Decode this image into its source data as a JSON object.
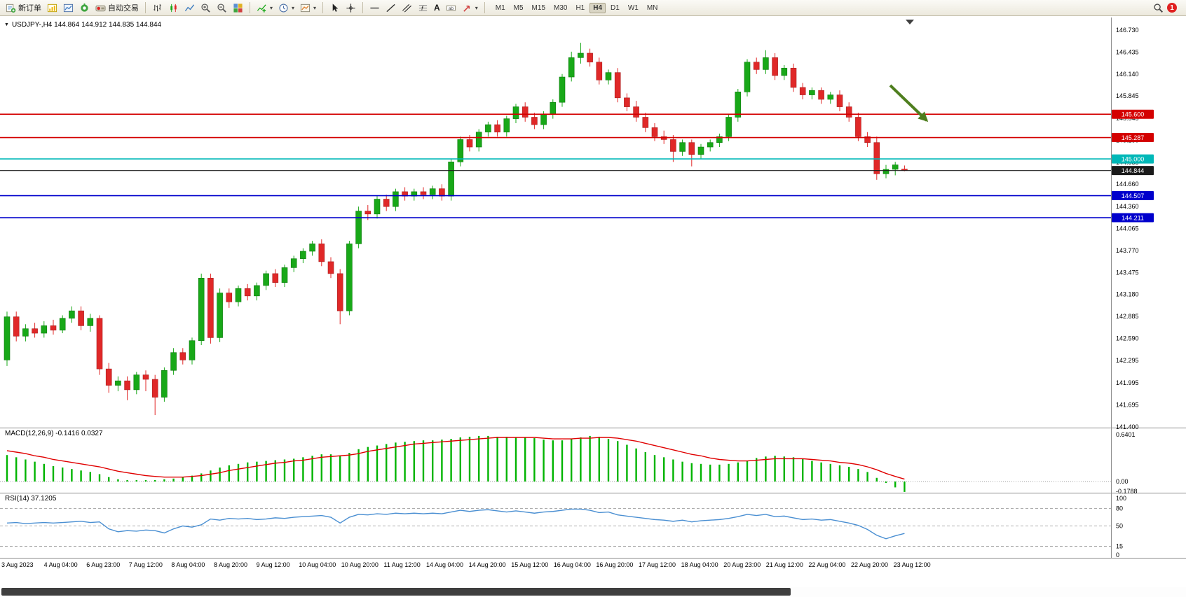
{
  "toolbar": {
    "new_order_label": "新订单",
    "auto_trading_label": "自动交易",
    "text_tool_label": "A",
    "timeframes": [
      "M1",
      "M5",
      "M15",
      "M30",
      "H1",
      "H4",
      "D1",
      "W1",
      "MN"
    ],
    "active_timeframe": "H4",
    "notification_count": "1"
  },
  "chart": {
    "title_text": "USDJPY-,H4 144.864 144.912 144.835 144.844",
    "symbol": "USDJPY-",
    "period": "H4",
    "ohlc": {
      "open": "144.864",
      "high": "144.912",
      "low": "144.835",
      "close": "144.844"
    }
  },
  "chart_data": {
    "type": "candlestick",
    "symbol": "USDJPY",
    "timeframe": "H4",
    "ylim": [
      141.4,
      146.85
    ],
    "up_color": "#18a818",
    "down_color": "#e02828",
    "price_axis_labels": [
      "146.730",
      "146.435",
      "146.140",
      "145.845",
      "145.545",
      "145.250",
      "144.955",
      "144.660",
      "144.360",
      "144.065",
      "143.770",
      "143.475",
      "143.180",
      "142.885",
      "142.590",
      "142.295",
      "141.995",
      "141.695",
      "141.400"
    ],
    "x_labels": [
      "3 Aug 2023",
      "4 Aug 04:00",
      "6 Aug 23:00",
      "7 Aug 12:00",
      "8 Aug 04:00",
      "8 Aug 20:00",
      "9 Aug 12:00",
      "10 Aug 04:00",
      "10 Aug 20:00",
      "11 Aug 12:00",
      "14 Aug 04:00",
      "14 Aug 20:00",
      "15 Aug 12:00",
      "16 Aug 04:00",
      "16 Aug 20:00",
      "17 Aug 12:00",
      "18 Aug 04:00",
      "20 Aug 23:00",
      "21 Aug 12:00",
      "22 Aug 04:00",
      "22 Aug 20:00",
      "23 Aug 12:00"
    ],
    "levels": [
      {
        "value": 145.6,
        "label": "145.600",
        "color": "#d40000",
        "kind": "resistance"
      },
      {
        "value": 145.287,
        "label": "145.287",
        "color": "#d40000",
        "kind": "resistance"
      },
      {
        "value": 145.0,
        "label": "145.000",
        "color": "#00b8b8",
        "kind": "pivot"
      },
      {
        "value": 144.844,
        "label": "144.844",
        "color": "#1a1a1a",
        "kind": "current-price"
      },
      {
        "value": 144.507,
        "label": "144.507",
        "color": "#0000cc",
        "kind": "support"
      },
      {
        "value": 144.211,
        "label": "144.211",
        "color": "#0000cc",
        "kind": "support"
      }
    ],
    "annotations": [
      {
        "type": "arrow",
        "direction": "down-right",
        "color": "#4e7e1e"
      }
    ],
    "candles": [
      [
        142.3,
        142.95,
        142.22,
        142.88
      ],
      [
        142.88,
        142.95,
        142.55,
        142.62
      ],
      [
        142.62,
        142.78,
        142.55,
        142.72
      ],
      [
        142.72,
        142.8,
        142.6,
        142.66
      ],
      [
        142.66,
        142.82,
        142.6,
        142.76
      ],
      [
        142.76,
        142.84,
        142.64,
        142.7
      ],
      [
        142.7,
        142.9,
        142.66,
        142.86
      ],
      [
        142.86,
        143.02,
        142.8,
        142.96
      ],
      [
        142.96,
        143.02,
        142.7,
        142.76
      ],
      [
        142.76,
        142.92,
        142.68,
        142.86
      ],
      [
        142.86,
        142.9,
        142.1,
        142.18
      ],
      [
        142.18,
        142.26,
        141.86,
        141.96
      ],
      [
        141.96,
        142.08,
        141.88,
        142.02
      ],
      [
        142.02,
        142.08,
        141.76,
        141.9
      ],
      [
        141.9,
        142.14,
        141.84,
        142.1
      ],
      [
        142.1,
        142.16,
        141.88,
        142.04
      ],
      [
        142.04,
        142.1,
        141.56,
        141.8
      ],
      [
        141.8,
        142.2,
        141.74,
        142.16
      ],
      [
        142.16,
        142.46,
        142.1,
        142.4
      ],
      [
        142.4,
        142.46,
        142.24,
        142.3
      ],
      [
        142.3,
        142.6,
        142.24,
        142.56
      ],
      [
        142.56,
        143.46,
        142.5,
        143.4
      ],
      [
        143.4,
        143.46,
        142.52,
        142.6
      ],
      [
        142.6,
        143.26,
        142.54,
        143.2
      ],
      [
        143.2,
        143.26,
        143.0,
        143.08
      ],
      [
        143.08,
        143.3,
        143.02,
        143.26
      ],
      [
        143.26,
        143.32,
        143.1,
        143.16
      ],
      [
        143.16,
        143.34,
        143.1,
        143.3
      ],
      [
        143.3,
        143.5,
        143.24,
        143.46
      ],
      [
        143.46,
        143.52,
        143.28,
        143.34
      ],
      [
        143.34,
        143.58,
        143.28,
        143.54
      ],
      [
        143.54,
        143.7,
        143.48,
        143.66
      ],
      [
        143.66,
        143.8,
        143.6,
        143.76
      ],
      [
        143.76,
        143.9,
        143.7,
        143.86
      ],
      [
        143.86,
        143.92,
        143.56,
        143.62
      ],
      [
        143.62,
        143.68,
        143.4,
        143.46
      ],
      [
        143.46,
        143.52,
        142.78,
        142.96
      ],
      [
        142.96,
        143.9,
        142.9,
        143.86
      ],
      [
        143.86,
        144.36,
        143.8,
        144.3
      ],
      [
        144.3,
        144.38,
        144.18,
        144.26
      ],
      [
        144.26,
        144.5,
        144.2,
        144.46
      ],
      [
        144.46,
        144.52,
        144.3,
        144.36
      ],
      [
        144.36,
        144.6,
        144.3,
        144.56
      ],
      [
        144.56,
        144.62,
        144.44,
        144.5
      ],
      [
        144.5,
        144.6,
        144.44,
        144.56
      ],
      [
        144.56,
        144.62,
        144.46,
        144.52
      ],
      [
        144.52,
        144.64,
        144.46,
        144.6
      ],
      [
        144.6,
        144.66,
        144.44,
        144.5
      ],
      [
        144.5,
        145.0,
        144.44,
        144.96
      ],
      [
        144.96,
        145.3,
        144.9,
        145.26
      ],
      [
        145.26,
        145.32,
        145.1,
        145.16
      ],
      [
        145.16,
        145.4,
        145.1,
        145.36
      ],
      [
        145.36,
        145.5,
        145.3,
        145.46
      ],
      [
        145.46,
        145.52,
        145.3,
        145.36
      ],
      [
        145.36,
        145.58,
        145.3,
        145.54
      ],
      [
        145.54,
        145.74,
        145.48,
        145.7
      ],
      [
        145.7,
        145.76,
        145.5,
        145.56
      ],
      [
        145.56,
        145.62,
        145.4,
        145.46
      ],
      [
        145.46,
        145.64,
        145.4,
        145.6
      ],
      [
        145.6,
        145.8,
        145.54,
        145.76
      ],
      [
        145.76,
        146.14,
        145.7,
        146.1
      ],
      [
        146.1,
        146.44,
        146.04,
        146.36
      ],
      [
        146.36,
        146.56,
        146.28,
        146.42
      ],
      [
        146.42,
        146.48,
        146.24,
        146.3
      ],
      [
        146.3,
        146.36,
        146.0,
        146.06
      ],
      [
        146.06,
        146.2,
        146.0,
        146.16
      ],
      [
        146.16,
        146.22,
        145.76,
        145.82
      ],
      [
        145.82,
        145.88,
        145.64,
        145.7
      ],
      [
        145.7,
        145.78,
        145.5,
        145.56
      ],
      [
        145.56,
        145.62,
        145.36,
        145.42
      ],
      [
        145.42,
        145.48,
        145.24,
        145.3
      ],
      [
        145.3,
        145.38,
        145.2,
        145.26
      ],
      [
        145.26,
        145.32,
        144.96,
        145.1
      ],
      [
        145.1,
        145.26,
        145.04,
        145.22
      ],
      [
        145.22,
        145.26,
        144.9,
        145.06
      ],
      [
        145.06,
        145.2,
        145.0,
        145.16
      ],
      [
        145.16,
        145.26,
        145.1,
        145.22
      ],
      [
        145.22,
        145.34,
        145.16,
        145.3
      ],
      [
        145.3,
        145.6,
        145.24,
        145.56
      ],
      [
        145.56,
        145.94,
        145.5,
        145.9
      ],
      [
        145.9,
        146.34,
        145.84,
        146.3
      ],
      [
        146.3,
        146.36,
        146.14,
        146.2
      ],
      [
        146.2,
        146.46,
        146.14,
        146.36
      ],
      [
        146.36,
        146.42,
        146.06,
        146.12
      ],
      [
        146.12,
        146.26,
        146.06,
        146.22
      ],
      [
        146.22,
        146.28,
        145.9,
        145.96
      ],
      [
        145.96,
        146.02,
        145.8,
        145.86
      ],
      [
        145.86,
        145.96,
        145.8,
        145.92
      ],
      [
        145.92,
        145.96,
        145.74,
        145.8
      ],
      [
        145.8,
        145.9,
        145.74,
        145.86
      ],
      [
        145.86,
        145.92,
        145.64,
        145.7
      ],
      [
        145.7,
        145.76,
        145.5,
        145.56
      ],
      [
        145.56,
        145.62,
        145.24,
        145.3
      ],
      [
        145.3,
        145.36,
        145.16,
        145.22
      ],
      [
        145.22,
        145.3,
        144.72,
        144.8
      ],
      [
        144.8,
        144.92,
        144.74,
        144.86
      ],
      [
        144.86,
        144.96,
        144.78,
        144.92
      ],
      [
        144.864,
        144.912,
        144.835,
        144.844
      ]
    ],
    "indicators": [
      {
        "type": "macd",
        "title": "MACD(12,26,9) -0.1416 0.0327",
        "histogram_color": "#00b400",
        "signal_color": "#e00000",
        "scale_labels": [
          "0.6401",
          "0.00",
          "-0.1788"
        ],
        "histogram": [
          0.36,
          0.33,
          0.3,
          0.27,
          0.24,
          0.21,
          0.19,
          0.17,
          0.15,
          0.13,
          0.1,
          0.06,
          0.03,
          0.02,
          0.02,
          0.02,
          0.02,
          0.03,
          0.04,
          0.06,
          0.08,
          0.11,
          0.15,
          0.19,
          0.22,
          0.24,
          0.26,
          0.27,
          0.28,
          0.29,
          0.3,
          0.31,
          0.33,
          0.35,
          0.37,
          0.37,
          0.35,
          0.39,
          0.44,
          0.47,
          0.49,
          0.51,
          0.53,
          0.54,
          0.55,
          0.56,
          0.56,
          0.57,
          0.58,
          0.6,
          0.61,
          0.62,
          0.62,
          0.61,
          0.61,
          0.6,
          0.6,
          0.59,
          0.57,
          0.56,
          0.56,
          0.58,
          0.6,
          0.62,
          0.61,
          0.58,
          0.55,
          0.5,
          0.45,
          0.4,
          0.36,
          0.33,
          0.3,
          0.27,
          0.25,
          0.24,
          0.23,
          0.23,
          0.24,
          0.26,
          0.28,
          0.32,
          0.34,
          0.35,
          0.34,
          0.33,
          0.31,
          0.28,
          0.26,
          0.24,
          0.22,
          0.2,
          0.17,
          0.13,
          0.05,
          -0.02,
          -0.08,
          -0.1416
        ],
        "signal": [
          0.42,
          0.4,
          0.38,
          0.35,
          0.33,
          0.3,
          0.28,
          0.26,
          0.24,
          0.22,
          0.2,
          0.17,
          0.14,
          0.12,
          0.1,
          0.08,
          0.07,
          0.06,
          0.06,
          0.06,
          0.07,
          0.08,
          0.1,
          0.12,
          0.15,
          0.17,
          0.19,
          0.21,
          0.23,
          0.25,
          0.26,
          0.28,
          0.29,
          0.31,
          0.33,
          0.34,
          0.35,
          0.36,
          0.38,
          0.41,
          0.43,
          0.45,
          0.47,
          0.49,
          0.51,
          0.52,
          0.53,
          0.54,
          0.55,
          0.56,
          0.57,
          0.58,
          0.59,
          0.6,
          0.6,
          0.6,
          0.6,
          0.6,
          0.59,
          0.58,
          0.58,
          0.58,
          0.59,
          0.59,
          0.6,
          0.6,
          0.59,
          0.57,
          0.55,
          0.52,
          0.49,
          0.46,
          0.43,
          0.4,
          0.37,
          0.35,
          0.32,
          0.3,
          0.29,
          0.28,
          0.28,
          0.29,
          0.3,
          0.31,
          0.31,
          0.31,
          0.31,
          0.3,
          0.29,
          0.28,
          0.26,
          0.25,
          0.23,
          0.2,
          0.16,
          0.11,
          0.07,
          0.0327
        ]
      },
      {
        "type": "rsi",
        "title": "RSI(14) 37.1205",
        "line_color": "#4a8fd2",
        "levels": [
          80,
          50,
          15
        ],
        "scale_labels": [
          "100",
          "80",
          "50",
          "15",
          "0"
        ],
        "values": [
          55,
          56,
          54,
          55,
          56,
          55,
          56,
          57,
          58,
          56,
          57,
          45,
          40,
          42,
          41,
          43,
          42,
          38,
          45,
          50,
          48,
          52,
          62,
          60,
          63,
          62,
          63,
          61,
          62,
          64,
          63,
          65,
          66,
          67,
          68,
          65,
          55,
          65,
          70,
          69,
          71,
          70,
          72,
          71,
          72,
          71,
          72,
          71,
          74,
          77,
          75,
          77,
          78,
          76,
          74,
          76,
          74,
          72,
          74,
          75,
          77,
          79,
          79,
          77,
          73,
          74,
          69,
          67,
          65,
          63,
          61,
          60,
          58,
          60,
          57,
          59,
          60,
          61,
          63,
          66,
          70,
          68,
          70,
          66,
          67,
          64,
          61,
          62,
          60,
          61,
          58,
          55,
          51,
          44,
          34,
          28,
          33,
          37.12
        ]
      }
    ]
  }
}
